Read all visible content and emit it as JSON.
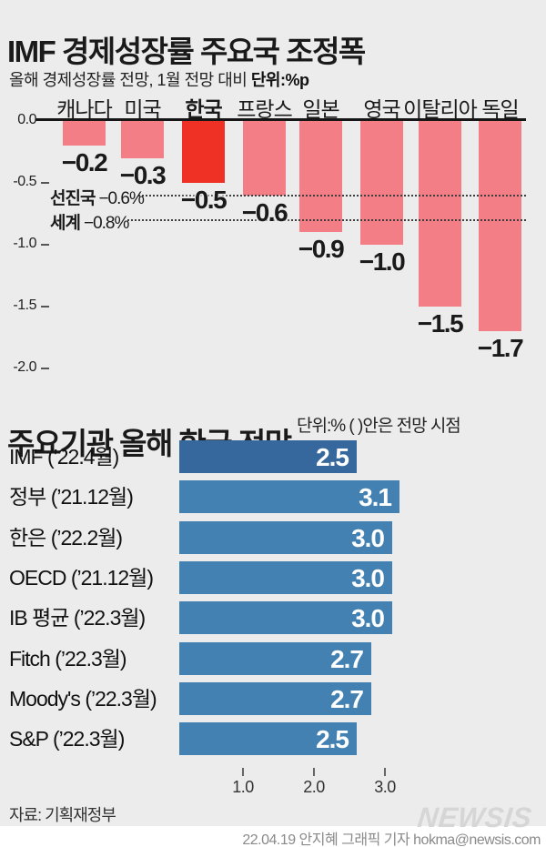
{
  "page": {
    "background": "#ececec"
  },
  "header": {
    "title_prefix": "IMF",
    "title_main": " 경제성장률 주요국 조정폭",
    "subtitle": "올해 경제성장률 전망, 1월 전망 대비 ",
    "subtitle_unit": "단위:%p"
  },
  "chart_data": [
    {
      "type": "bar",
      "orientation": "vertical",
      "title": "IMF 경제성장률 주요국 조정폭",
      "unit": "%p",
      "categories": [
        "캐나다",
        "미국",
        "한국",
        "프랑스",
        "일본",
        "영국",
        "이탈리아",
        "독일"
      ],
      "values": [
        -0.2,
        -0.3,
        -0.5,
        -0.6,
        -0.9,
        -1.0,
        -1.5,
        -1.7
      ],
      "value_labels": [
        "−0.2",
        "−0.3",
        "−0.5",
        "−0.6",
        "−0.9",
        "−1.0",
        "−1.5",
        "−1.7"
      ],
      "highlight_index": 2,
      "bar_color": "#f47e86",
      "highlight_color": "#ee3124",
      "ylim": [
        -2.0,
        0.0
      ],
      "ytick_values": [
        0,
        -0.5,
        -1.0,
        -1.5,
        -2.0
      ],
      "ytick_labels": [
        "0.0",
        "-0.5",
        "-1.0",
        "-1.5",
        "-2.0"
      ],
      "reference_lines": [
        {
          "name": "선진국",
          "label": "−0.6%",
          "value": -0.6
        },
        {
          "name": "세계",
          "label": "−0.8%",
          "value": -0.8
        }
      ],
      "grid": "off",
      "legend": "none"
    },
    {
      "type": "bar",
      "orientation": "horizontal",
      "title": "주요기관 올해 한국 전망",
      "unit_note": "단위:% ( )안은 전망 시점",
      "categories": [
        "IMF (’22.4월)",
        "정부 (’21.12월)",
        "한은 (’22.2월)",
        "OECD (’21.12월)",
        "IB 평균 (’22.3월)",
        "Fitch (’22.3월)",
        "Moody's (’22.3월)",
        "S&P (’22.3월)"
      ],
      "values": [
        2.5,
        3.1,
        3.0,
        3.0,
        3.0,
        2.7,
        2.7,
        2.5
      ],
      "value_labels": [
        "2.5",
        "3.1",
        "3.0",
        "3.0",
        "3.0",
        "2.7",
        "2.7",
        "2.5"
      ],
      "highlight_index": 0,
      "bar_color": "#4281b1",
      "highlight_color": "#36689d",
      "xlim": [
        0,
        3.5
      ],
      "xtick_values": [
        1.0,
        2.0,
        3.0
      ],
      "xtick_labels": [
        "1.0",
        "2.0",
        "3.0"
      ],
      "grid": "off",
      "legend": "none"
    }
  ],
  "footer": {
    "source": "자료: 기획재정부",
    "logo": "NEWSIS",
    "credit": "22.04.19 안지혜 그래픽 기자 hokma@newsis.com"
  }
}
